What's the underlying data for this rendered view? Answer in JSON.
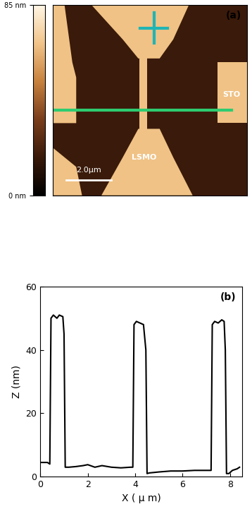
{
  "chart_data": [
    {
      "type": "image",
      "panel_label": "(a)",
      "annotations": [
        "STO",
        "LSMO"
      ],
      "scale_bar": "2.0μm",
      "colorbar_lim": [
        0,
        85
      ],
      "colorbar_ticks": [
        {
          "value": 0,
          "label": "0 nm"
        },
        {
          "value": 85,
          "label": "85 nm"
        }
      ]
    },
    {
      "type": "line",
      "panel_label": "(b)",
      "x_label": "X ( μ m)",
      "y_label": "Z (nm)",
      "x": [
        0,
        0.3,
        0.4,
        0.45,
        0.55,
        0.7,
        0.8,
        0.95,
        1.0,
        1.05,
        1.2,
        1.5,
        1.8,
        2.0,
        2.3,
        2.6,
        3.0,
        3.4,
        3.8,
        3.9,
        3.95,
        4.05,
        4.2,
        4.35,
        4.45,
        4.5,
        4.6,
        5.0,
        5.5,
        6.0,
        6.5,
        7.0,
        7.2,
        7.25,
        7.35,
        7.5,
        7.65,
        7.75,
        7.8,
        7.85,
        7.95,
        8.1,
        8.3,
        8.4
      ],
      "values": [
        4.5,
        4.5,
        4,
        50,
        51,
        50,
        51,
        50.5,
        45,
        3,
        3,
        3.2,
        3.5,
        3.8,
        3,
        3.5,
        3,
        2.8,
        3,
        3,
        48,
        49,
        48.5,
        48,
        40,
        1,
        1.2,
        1.5,
        1.8,
        1.8,
        2,
        2,
        2,
        48,
        49,
        48.5,
        49.5,
        49,
        40,
        1,
        1,
        2,
        2.5,
        3
      ],
      "color": "#000000",
      "xlim": [
        0,
        8.5
      ],
      "xticks": [
        0,
        2,
        4,
        6,
        8
      ],
      "ylim": [
        0,
        60
      ],
      "yticks": [
        0,
        20,
        40,
        60
      ]
    }
  ]
}
